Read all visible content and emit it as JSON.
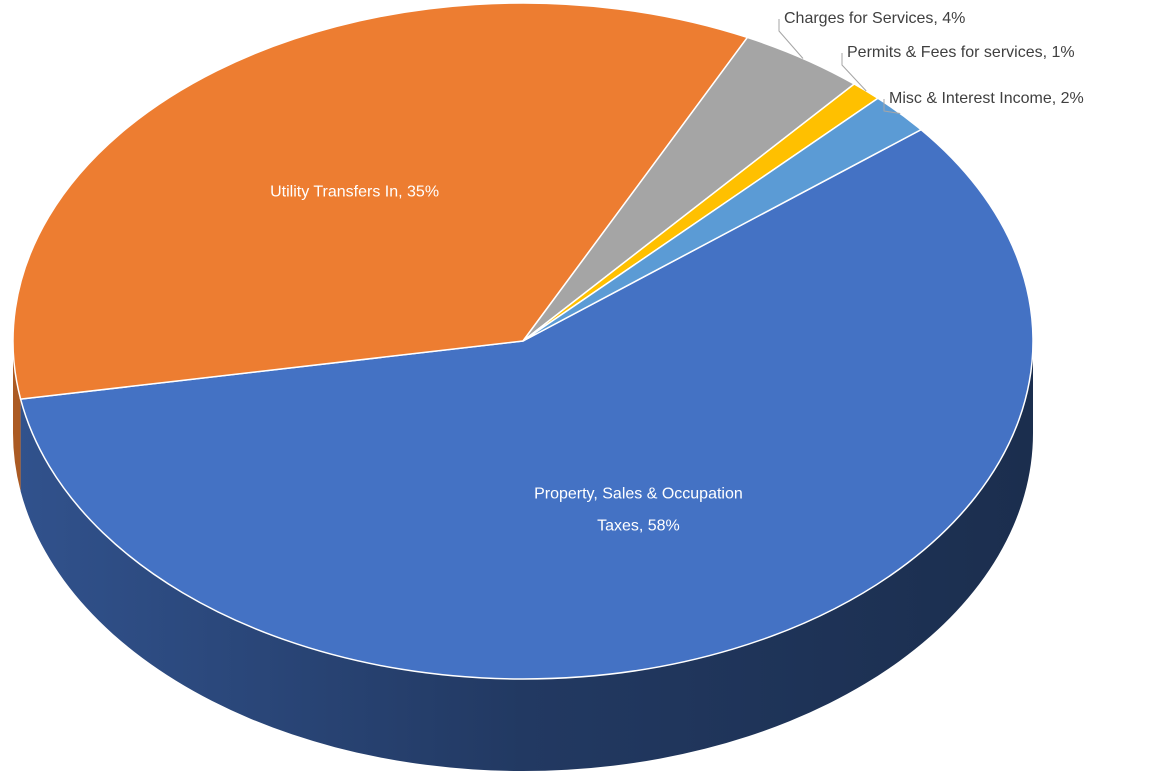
{
  "chart_data": {
    "type": "pie",
    "values": [
      58,
      35,
      4,
      1,
      2
    ],
    "value_labels": [
      "Property, Sales & Occupation Taxes, 58%",
      "Utility Transfers In, 35%",
      "Charges for Services, 4%",
      "Permits & Fees for services, 1%",
      "Misc & Interest Income, 2%"
    ],
    "colors": [
      "#4472c4",
      "#ed7d31",
      "#a5a5a5",
      "#ffc000",
      "#5b9bd5"
    ]
  }
}
